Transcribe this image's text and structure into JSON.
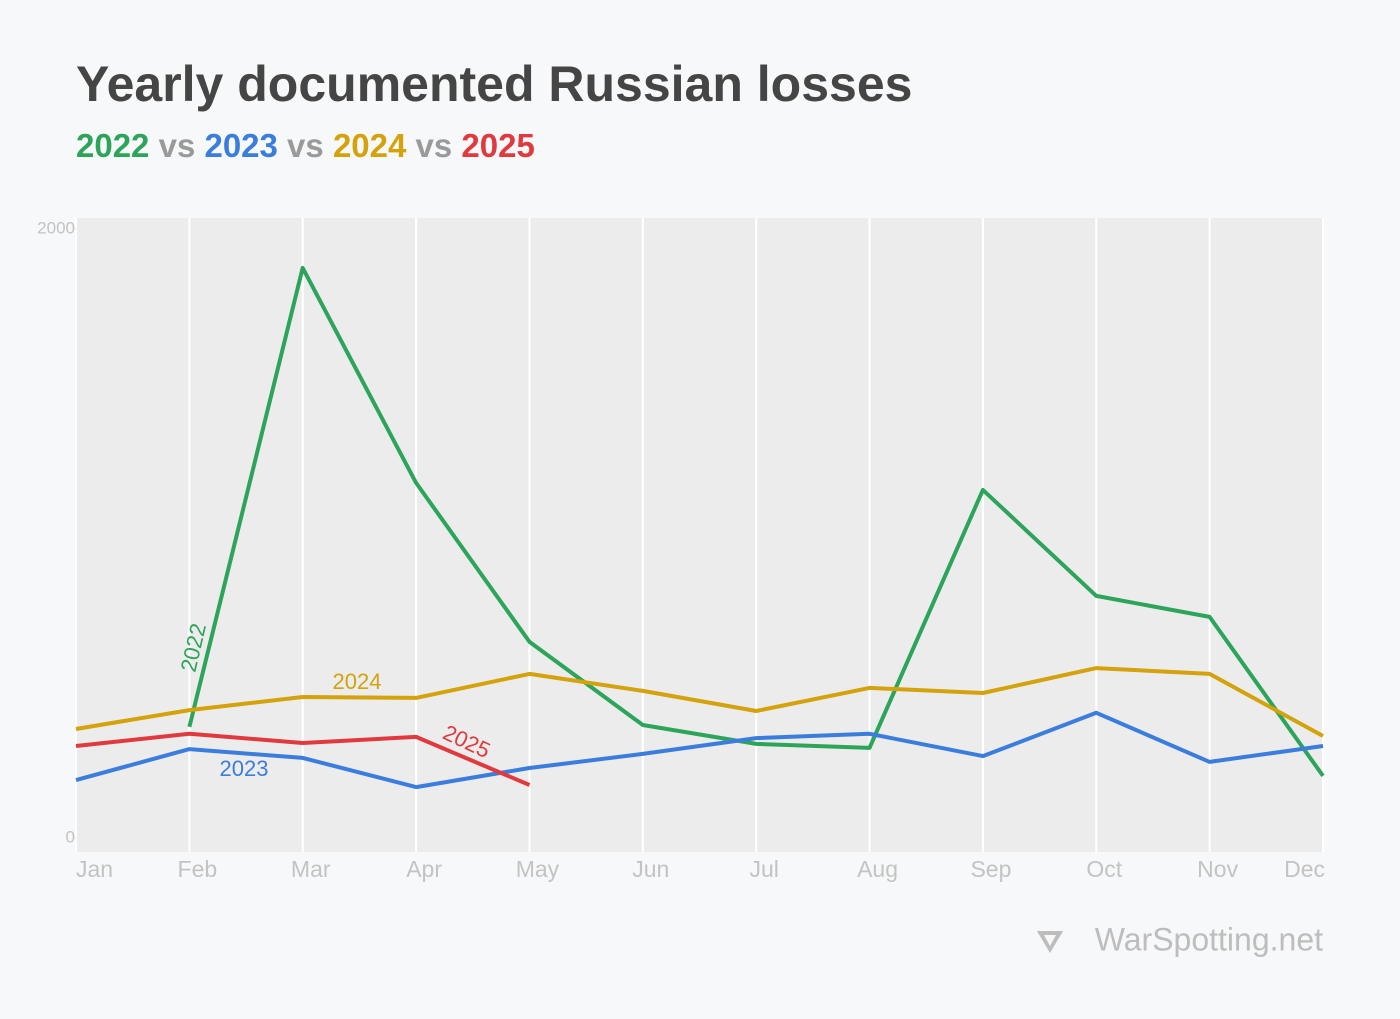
{
  "chart_data": {
    "type": "line",
    "title": "Yearly documented Russian losses",
    "subtitle_separator": "vs",
    "categories": [
      "Jan",
      "Feb",
      "Mar",
      "Apr",
      "May",
      "Jun",
      "Jul",
      "Aug",
      "Sep",
      "Oct",
      "Nov",
      "Dec"
    ],
    "series": [
      {
        "name": "2022",
        "color": "#2ca55a",
        "values": [
          null,
          365,
          1872,
          1166,
          644,
          371,
          309,
          296,
          1143,
          795,
          726,
          204
        ]
      },
      {
        "name": "2023",
        "color": "#3b7ddd",
        "values": [
          190,
          292,
          263,
          167,
          230,
          276,
          328,
          342,
          269,
          411,
          250,
          302
        ]
      },
      {
        "name": "2024",
        "color": "#d4a20a",
        "values": [
          358,
          420,
          463,
          460,
          539,
          483,
          417,
          493,
          476,
          558,
          539,
          335
        ]
      },
      {
        "name": "2025",
        "color": "#e03a3e",
        "values": [
          302,
          342,
          312,
          332,
          174,
          null,
          null,
          null,
          null,
          null,
          null,
          null
        ]
      }
    ],
    "ylim": [
      -46,
      2036
    ],
    "yticks": [
      0,
      2000
    ],
    "grid": true,
    "source": "WarSpotting.net"
  }
}
